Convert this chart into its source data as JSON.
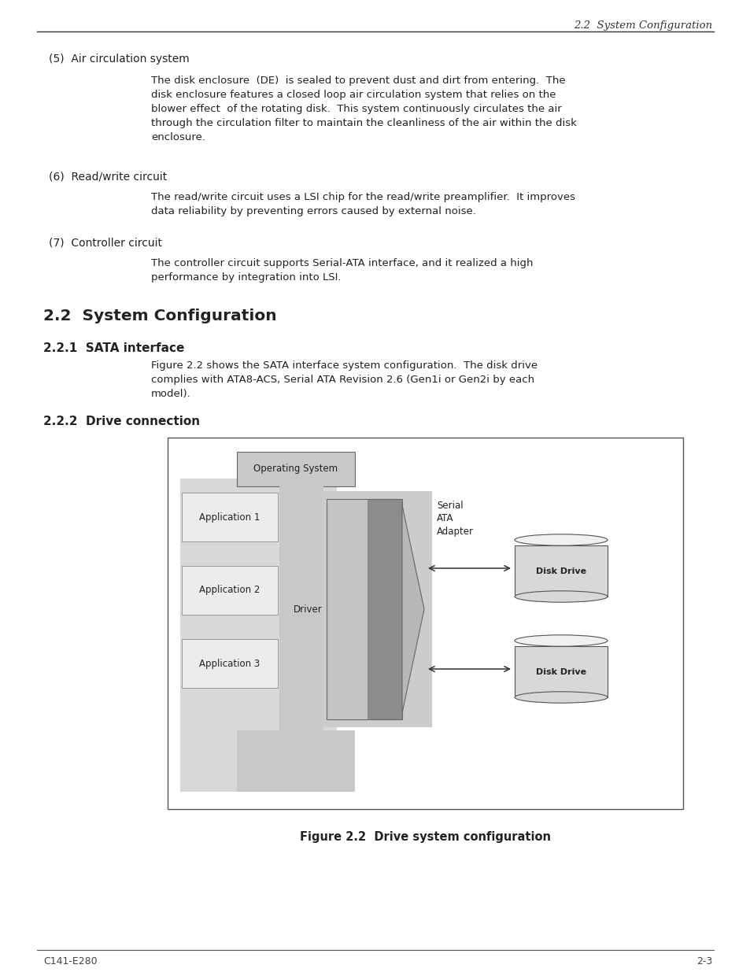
{
  "page_header": "2.2  System Configuration",
  "footer_left": "C141-E280",
  "footer_right": "2-3",
  "bg_color": "#ffffff",
  "sec5_label": "(5)  Air circulation system",
  "sec5_body": "The disk enclosure  (DE)  is sealed to prevent dust and dirt from entering.  The\ndisk enclosure features a closed loop air circulation system that relies on the\nblower effect  of the rotating disk.  This system continuously circulates the air\nthrough the circulation filter to maintain the cleanliness of the air within the disk\nenclosure.",
  "sec6_label": "(6)  Read/write circuit",
  "sec6_body": "The read/write circuit uses a LSI chip for the read/write preamplifier.  It improves\ndata reliability by preventing errors caused by external noise.",
  "sec7_label": "(7)  Controller circuit",
  "sec7_body": "The controller circuit supports Serial-ATA interface, and it realized a high\nperformance by integration into LSI.",
  "section_22_title": "2.2  System Configuration",
  "section_221_title": "2.2.1  SATA interface",
  "section_221_body": "Figure 2.2 shows the SATA interface system configuration.  The disk drive\ncomplies with ATA8-ACS, Serial ATA Revision 2.6 (Gen1i or Gen2i by each\nmodel).",
  "section_222_title": "2.2.2  Drive connection",
  "figure_caption": "Figure 2.2  Drive system configuration",
  "colors": {
    "light_gray_bg": "#d4d4d4",
    "medium_gray": "#b8b8b8",
    "dark_gray": "#8c8c8c",
    "os_box": "#c8c8c8",
    "app_box_fill": "#ececec",
    "app_box_border": "#999999",
    "driver_light": "#c4c4c4",
    "driver_dark": "#8c8c8c",
    "right_bg": "#cccccc",
    "disk_body": "#d8d8d8",
    "disk_top": "#f0f0f0",
    "disk_edge": "#555555",
    "arrow_color": "#333333",
    "box_edge": "#555555",
    "text_dark": "#222222",
    "white": "#ffffff"
  }
}
